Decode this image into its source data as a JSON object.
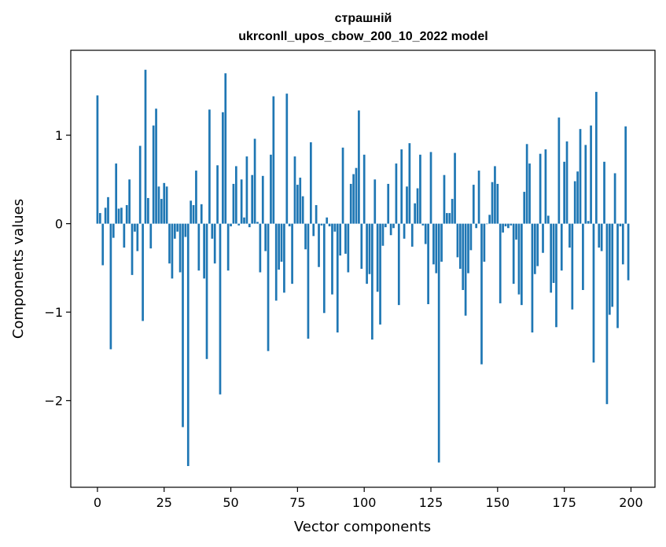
{
  "chart_data": {
    "type": "bar",
    "title_line1": "страшній",
    "title_line2": "ukrconll_upos_cbow_200_10_2022 model",
    "xlabel": "Vector components",
    "ylabel": "Components values",
    "xlim": [
      -10,
      209
    ],
    "ylim": [
      -2.98,
      1.96
    ],
    "xticks": [
      0,
      25,
      50,
      75,
      100,
      125,
      150,
      175,
      200
    ],
    "xtick_labels": [
      "0",
      "25",
      "50",
      "75",
      "100",
      "125",
      "150",
      "175",
      "200"
    ],
    "yticks": [
      -2,
      -1,
      0,
      1
    ],
    "ytick_labels": [
      "−2",
      "−1",
      "0",
      "1"
    ],
    "grid": false,
    "bar_color": "#1f77b4",
    "values": [
      1.45,
      0.12,
      -0.47,
      0.18,
      0.3,
      -1.42,
      -0.16,
      0.68,
      0.17,
      0.18,
      -0.27,
      0.21,
      0.5,
      -0.58,
      -0.09,
      -0.31,
      0.88,
      -1.1,
      1.74,
      0.29,
      -0.28,
      1.11,
      1.3,
      0.42,
      0.28,
      0.46,
      0.42,
      -0.45,
      -0.62,
      -0.17,
      -0.09,
      -0.55,
      -2.3,
      -0.15,
      -2.74,
      0.26,
      0.21,
      0.6,
      -0.53,
      0.22,
      -0.62,
      -1.53,
      1.29,
      -0.17,
      -0.45,
      0.66,
      -1.93,
      1.26,
      1.7,
      -0.53,
      -0.03,
      0.45,
      0.65,
      -0.02,
      0.5,
      0.07,
      0.76,
      -0.04,
      0.55,
      0.96,
      0.02,
      -0.55,
      0.54,
      -0.31,
      -1.44,
      0.78,
      1.44,
      -0.87,
      -0.52,
      -0.43,
      -0.78,
      1.47,
      -0.03,
      -0.68,
      0.76,
      0.44,
      0.52,
      0.31,
      -0.29,
      -1.3,
      0.92,
      -0.14,
      0.21,
      -0.49,
      -0.02,
      -1.01,
      0.07,
      -0.03,
      -0.8,
      -0.09,
      -1.23,
      -0.36,
      0.86,
      -0.34,
      -0.55,
      0.45,
      0.56,
      0.63,
      1.28,
      -0.51,
      0.78,
      -0.68,
      -0.57,
      -1.31,
      0.5,
      -0.77,
      -1.14,
      -0.25,
      -0.04,
      0.45,
      -0.13,
      -0.05,
      0.68,
      -0.92,
      0.84,
      -0.17,
      0.42,
      0.91,
      -0.26,
      0.23,
      0.4,
      0.78,
      -0.02,
      -0.23,
      -0.91,
      0.81,
      -0.46,
      -0.56,
      -2.7,
      -0.43,
      0.55,
      0.12,
      0.12,
      0.28,
      0.8,
      -0.38,
      -0.51,
      -0.75,
      -1.04,
      -0.56,
      -0.3,
      0.44,
      -0.05,
      0.6,
      -1.59,
      -0.43,
      0.0,
      0.1,
      0.47,
      0.65,
      0.45,
      -0.9,
      -0.1,
      -0.03,
      -0.05,
      -0.02,
      -0.68,
      -0.18,
      -0.8,
      -0.92,
      0.36,
      0.9,
      0.68,
      -1.23,
      -0.57,
      -0.48,
      0.79,
      -0.33,
      0.84,
      0.09,
      -0.78,
      -0.67,
      -1.17,
      1.2,
      -0.53,
      0.7,
      0.93,
      -0.27,
      -0.97,
      0.48,
      0.59,
      1.07,
      -0.75,
      0.89,
      0.03,
      1.11,
      -1.57,
      1.49,
      -0.27,
      -0.31,
      0.7,
      -2.04,
      -1.03,
      -0.94,
      0.57,
      -1.18,
      -0.03,
      -0.46,
      1.1,
      -0.64
    ]
  }
}
